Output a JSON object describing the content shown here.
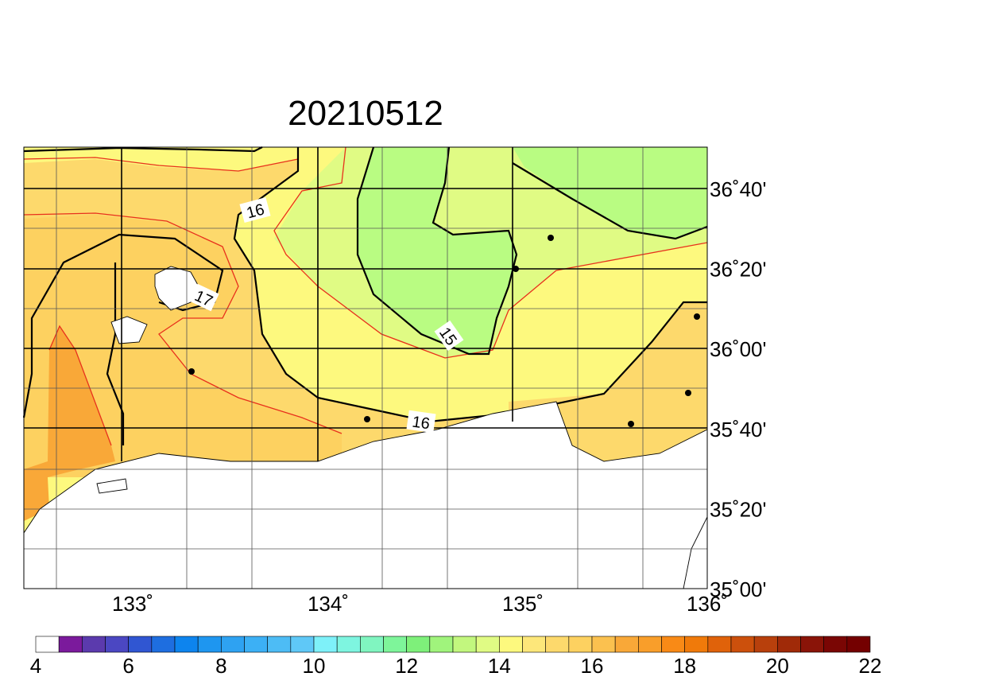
{
  "title": "20210512",
  "lon_labels": [
    "133˚",
    "134˚",
    "135˚",
    "136˚"
  ],
  "lat_labels": [
    "36˚40'",
    "36˚20'",
    "36˚00'",
    "35˚40'",
    "35˚20'",
    "35˚00'"
  ],
  "contour_labels": [
    "16",
    "17",
    "15",
    "16"
  ],
  "colorbar": {
    "labels": [
      "4",
      "6",
      "8",
      "10",
      "12",
      "14",
      "16",
      "18",
      "20",
      "22"
    ],
    "colors": [
      "#ffffff",
      "#7b1a9c",
      "#5b3aad",
      "#4b47c2",
      "#3056d2",
      "#1e6ee0",
      "#0d84ee",
      "#1e96f0",
      "#2ea2f2",
      "#3cb0f5",
      "#4dbcf5",
      "#5fc8f7",
      "#7ef1f9",
      "#7ef5e0",
      "#80f5c0",
      "#7ef59a",
      "#7ef07a",
      "#a0f47c",
      "#c2f77e",
      "#e0fb84",
      "#fdf97e",
      "#fde77a",
      "#fdd96c",
      "#fdd160",
      "#fbc14f",
      "#f9a838",
      "#f99e2a",
      "#f98a16",
      "#f07a0a",
      "#e0620a",
      "#cc500c",
      "#b8400c",
      "#a02a08",
      "#8a1408",
      "#7a0604",
      "#740000"
    ]
  }
}
